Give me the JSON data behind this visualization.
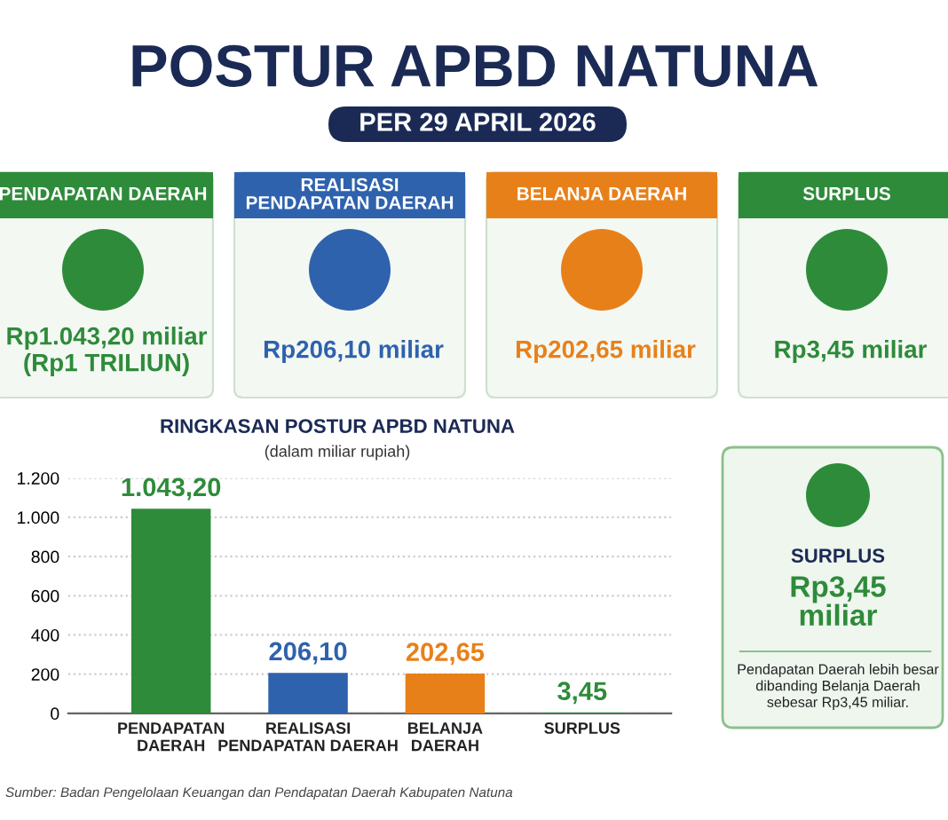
{
  "chart_data": [
    {
      "type": "other",
      "title": "POSTUR APBD NATUNA",
      "subtitle": "PER 29 APRIL 2026",
      "categories": [
        "PENDAPATAN DAERAH",
        "REALISASI\nPENDAPATAN DAERAH",
        "BELANJA DAERAH",
        "SURPLUS"
      ],
      "colors": [
        "#2e8b3a",
        "#2f62ad",
        "#e8801a",
        "#2e8b3a"
      ],
      "annotations": [
        "Rp1.043,20 miliar\n(Rp1 TRILIUN)",
        "Rp206,10 miliar",
        "Rp202,65 miliar",
        "Rp3,45 miliar"
      ]
    },
    {
      "type": "bar",
      "title": "RINGKASAN POSTUR APBD NATUNA",
      "subtitle": "(dalam miliar rupiah)",
      "categories": [
        "PENDAPATAN\nDAERAH",
        "REALISASI\nPENDAPATAN DAERAH",
        "BELANJA\nDAERAH",
        "SURPLUS"
      ],
      "values": [
        1043.2,
        206.1,
        202.65,
        3.45
      ],
      "colors": [
        "#2e8b3a",
        "#2f62ad",
        "#e8801a",
        "#2e8b3a"
      ],
      "value_labels": [
        "1.043,20",
        "206,10",
        "202,65",
        "3,45"
      ],
      "ylim": [
        0,
        1200
      ],
      "yticks": [
        0,
        200,
        400,
        600,
        800,
        {
          "value": 1000,
          "label": "1.000"
        },
        {
          "value": 1200,
          "label": "1.200"
        }
      ],
      "grid": "y",
      "annotations": [
        "Sumber: Badan Pengelolaan Keuangan dan Pendapatan Daerah Kabupaten Natuna"
      ]
    },
    {
      "type": "other",
      "title": "SURPLUS",
      "colors": [
        "#2e8b3a"
      ],
      "annotations": [
        "Rp3,45\nmiliar",
        "Pendapatan Daerah lebih besar\ndibanding Belanja Daerah\nsebesar Rp3,45 miliar."
      ]
    }
  ]
}
